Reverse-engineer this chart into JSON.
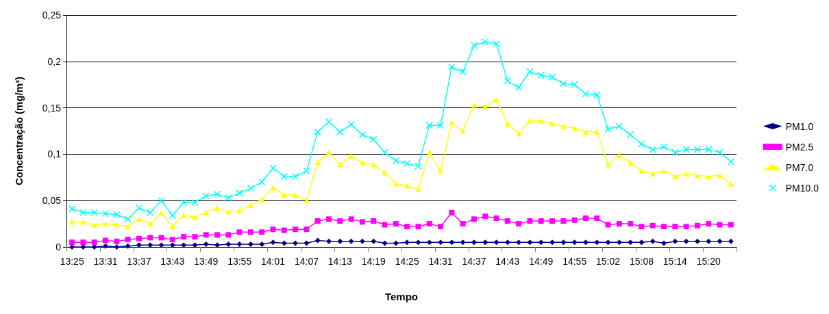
{
  "chart_data": {
    "type": "line",
    "xlabel": "Tempo",
    "ylabel": "Concentração (mg/m³)",
    "categories": [
      "13:25",
      null,
      null,
      "13:31",
      null,
      null,
      "13:37",
      null,
      null,
      "13:43",
      null,
      null,
      "13:49",
      null,
      null,
      "13:55",
      null,
      null,
      "14:01",
      null,
      null,
      "14:07",
      null,
      null,
      "14:13",
      null,
      null,
      "14:19",
      null,
      null,
      "14:25",
      null,
      null,
      "14:31",
      null,
      null,
      "14:37",
      null,
      null,
      "14:43",
      null,
      null,
      "14:49",
      null,
      null,
      "14:55",
      null,
      null,
      "15:02",
      null,
      null,
      "15:08",
      null,
      null,
      "15:14",
      null,
      null,
      "15:20",
      null,
      null
    ],
    "series": [
      {
        "name": "PM1.0",
        "color": "#000080",
        "marker": "diamond",
        "values": [
          0,
          0,
          0,
          0.001,
          0,
          0.001,
          0.002,
          0.002,
          0.002,
          0.002,
          0.002,
          0.002,
          0.003,
          0.002,
          0.003,
          0.003,
          0.003,
          0.003,
          0.005,
          0.004,
          0.004,
          0.004,
          0.007,
          0.006,
          0.006,
          0.006,
          0.006,
          0.006,
          0.004,
          0.004,
          0.005,
          0.005,
          0.005,
          0.005,
          0.005,
          0.005,
          0.005,
          0.005,
          0.005,
          0.005,
          0.005,
          0.005,
          0.005,
          0.005,
          0.005,
          0.005,
          0.005,
          0.005,
          0.005,
          0.005,
          0.005,
          0.005,
          0.006,
          0.004,
          0.006,
          0.006,
          0.006,
          0.006,
          0.006,
          0.006
        ]
      },
      {
        "name": "PM2.5",
        "color": "#ff00ff",
        "marker": "square",
        "values": [
          0.005,
          0.005,
          0.005,
          0.007,
          0.006,
          0.008,
          0.009,
          0.01,
          0.01,
          0.008,
          0.011,
          0.011,
          0.013,
          0.013,
          0.013,
          0.016,
          0.016,
          0.016,
          0.019,
          0.018,
          0.019,
          0.019,
          0.028,
          0.03,
          0.028,
          0.03,
          0.027,
          0.028,
          0.024,
          0.025,
          0.022,
          0.022,
          0.025,
          0.022,
          0.037,
          0.025,
          0.03,
          0.033,
          0.031,
          0.028,
          0.025,
          0.028,
          0.028,
          0.028,
          0.028,
          0.029,
          0.031,
          0.031,
          0.024,
          0.025,
          0.025,
          0.022,
          0.023,
          0.022,
          0.022,
          0.022,
          0.023,
          0.025,
          0.024,
          0.024
        ]
      },
      {
        "name": "PM7.0",
        "color": "#ffff00",
        "marker": "triangle",
        "values": [
          0.027,
          0.027,
          0.024,
          0.025,
          0.024,
          0.022,
          0.03,
          0.025,
          0.037,
          0.022,
          0.034,
          0.032,
          0.037,
          0.042,
          0.038,
          0.039,
          0.045,
          0.051,
          0.064,
          0.056,
          0.056,
          0.05,
          0.091,
          0.102,
          0.089,
          0.098,
          0.091,
          0.089,
          0.08,
          0.068,
          0.066,
          0.062,
          0.102,
          0.082,
          0.134,
          0.125,
          0.153,
          0.151,
          0.159,
          0.133,
          0.122,
          0.136,
          0.136,
          0.133,
          0.13,
          0.128,
          0.124,
          0.124,
          0.089,
          0.099,
          0.091,
          0.082,
          0.079,
          0.082,
          0.076,
          0.079,
          0.077,
          0.076,
          0.077,
          0.068
        ]
      },
      {
        "name": "PM10.0",
        "color": "#00ffff",
        "marker": "cross",
        "values": [
          0.041,
          0.037,
          0.037,
          0.036,
          0.035,
          0.03,
          0.042,
          0.037,
          0.05,
          0.034,
          0.048,
          0.048,
          0.055,
          0.057,
          0.053,
          0.058,
          0.063,
          0.07,
          0.085,
          0.076,
          0.076,
          0.082,
          0.124,
          0.135,
          0.124,
          0.132,
          0.121,
          0.116,
          0.102,
          0.093,
          0.09,
          0.087,
          0.131,
          0.131,
          0.194,
          0.189,
          0.217,
          0.221,
          0.219,
          0.179,
          0.172,
          0.189,
          0.185,
          0.183,
          0.176,
          0.175,
          0.165,
          0.164,
          0.127,
          0.13,
          0.121,
          0.111,
          0.105,
          0.108,
          0.102,
          0.105,
          0.105,
          0.105,
          0.102,
          0.092
        ]
      }
    ],
    "ylim": [
      0,
      0.25
    ],
    "yticks": [
      0,
      {
        "value": 0.05,
        "label": "0,05"
      },
      {
        "value": 0.1,
        "label": "0,1"
      },
      {
        "value": 0.15,
        "label": "0,15"
      },
      {
        "value": 0.2,
        "label": "0,2"
      },
      {
        "value": 0.25,
        "label": "0,25"
      }
    ],
    "grid": "y",
    "legend": "right",
    "line_style": "solid"
  }
}
